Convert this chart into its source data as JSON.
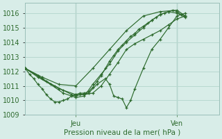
{
  "xlabel": "Pression niveau de la mer( hPa )",
  "bg_color": "#d8ede8",
  "grid_color": "#b8d8d0",
  "line_color": "#2d6a2d",
  "ylim": [
    1009.0,
    1016.7
  ],
  "xlim": [
    0,
    46
  ],
  "yticks": [
    1009,
    1010,
    1011,
    1012,
    1013,
    1014,
    1015,
    1016
  ],
  "xtick_positions": [
    12,
    36
  ],
  "xtick_labels": [
    "Jeu",
    "Ven"
  ],
  "vlines": [
    12,
    36
  ],
  "series": [
    [
      0,
      1012.2,
      1,
      1011.8,
      2,
      1011.5,
      3,
      1011.1,
      4,
      1010.8,
      5,
      1010.4,
      6,
      1010.1,
      7,
      1009.9,
      8,
      1009.9,
      9,
      1010.0,
      10,
      1010.1,
      11,
      1010.3,
      12,
      1010.4,
      13,
      1010.5,
      14,
      1010.5,
      15,
      1010.6,
      16,
      1010.9,
      17,
      1011.3,
      18,
      1011.7,
      19,
      1012.2,
      20,
      1012.7,
      21,
      1013.1,
      22,
      1013.5,
      23,
      1013.8,
      24,
      1014.1,
      25,
      1014.4,
      26,
      1014.6,
      27,
      1014.9,
      28,
      1015.1,
      29,
      1015.3,
      30,
      1015.5,
      31,
      1015.7,
      32,
      1015.9,
      33,
      1016.0,
      34,
      1016.1,
      35,
      1016.2,
      36,
      1016.1,
      37,
      1015.9,
      38,
      1015.8
    ],
    [
      0,
      1012.2,
      4,
      1011.6,
      8,
      1011.1,
      12,
      1011.0,
      16,
      1012.2,
      20,
      1013.5,
      24,
      1014.8,
      28,
      1015.8,
      32,
      1016.1,
      36,
      1016.2,
      38,
      1015.8
    ],
    [
      0,
      1012.2,
      4,
      1011.5,
      8,
      1010.8,
      12,
      1010.4,
      14,
      1010.4,
      16,
      1010.5,
      18,
      1011.0,
      20,
      1011.8,
      22,
      1012.6,
      24,
      1013.5,
      26,
      1013.9,
      28,
      1014.2,
      30,
      1014.5,
      32,
      1014.8,
      34,
      1015.2,
      36,
      1015.6,
      38,
      1015.8
    ],
    [
      0,
      1012.2,
      3,
      1011.7,
      5,
      1011.3,
      7,
      1011.0,
      9,
      1010.7,
      11,
      1010.4,
      12,
      1010.3,
      13,
      1010.4,
      15,
      1010.5,
      17,
      1011.1,
      19,
      1011.5,
      20,
      1011.1,
      21,
      1010.3,
      22,
      1010.2,
      23,
      1010.1,
      24,
      1009.5,
      25,
      1010.0,
      26,
      1010.8,
      28,
      1012.2,
      30,
      1013.5,
      32,
      1014.2,
      34,
      1015.0,
      36,
      1015.8,
      38,
      1016.0
    ],
    [
      0,
      1012.2,
      3,
      1011.6,
      6,
      1011.1,
      9,
      1010.5,
      12,
      1010.2,
      14,
      1010.3,
      16,
      1011.1,
      18,
      1011.8,
      20,
      1012.5,
      22,
      1013.4,
      24,
      1014.0,
      26,
      1014.5,
      28,
      1015.0,
      30,
      1015.5,
      32,
      1015.9,
      34,
      1016.1,
      36,
      1016.0,
      38,
      1015.7
    ]
  ]
}
